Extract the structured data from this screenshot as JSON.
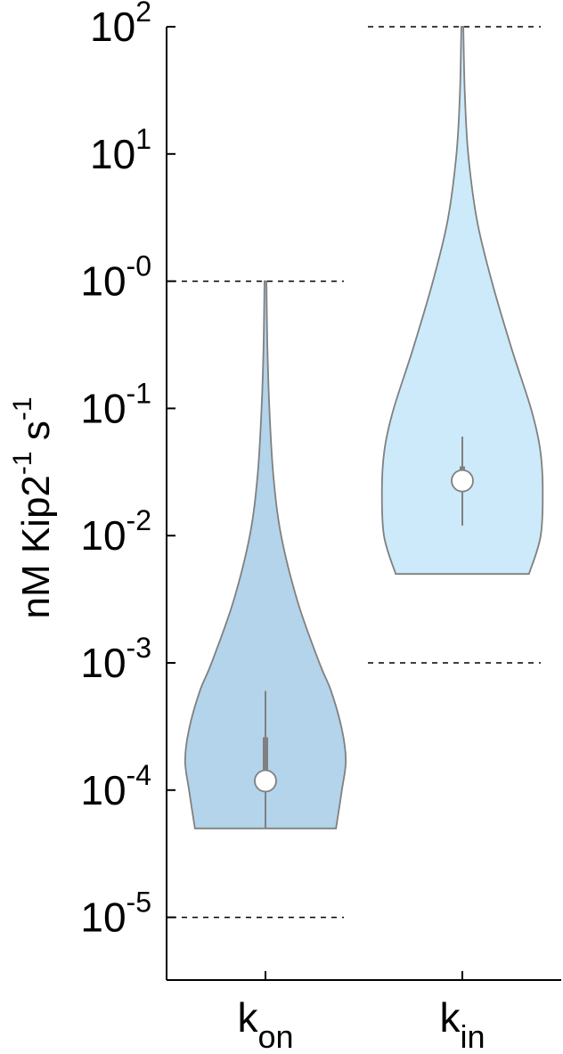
{
  "chart_data": {
    "type": "violin",
    "ylabel": "nM Kip2",
    "ylabel_parts": [
      "nM Kip2",
      "-1",
      " s",
      "-1"
    ],
    "yscale": "log",
    "ylim": [
      1e-06,
      100
    ],
    "yticks": [
      {
        "value": 100,
        "label_base": "10",
        "label_exp": "2"
      },
      {
        "value": 10,
        "label_base": "10",
        "label_exp": "1"
      },
      {
        "value": 1,
        "label_base": "10",
        "label_exp": "-0"
      },
      {
        "value": 0.1,
        "label_base": "10",
        "label_exp": "-1"
      },
      {
        "value": 0.01,
        "label_base": "10",
        "label_exp": "-2"
      },
      {
        "value": 0.001,
        "label_base": "10",
        "label_exp": "-3"
      },
      {
        "value": 0.0001,
        "label_base": "10",
        "label_exp": "-4"
      },
      {
        "value": 1e-05,
        "label_base": "10",
        "label_exp": "-5"
      }
    ],
    "categories": [
      {
        "label_base": "k",
        "label_sub": "on"
      },
      {
        "label_base": "k",
        "label_sub": "in"
      }
    ],
    "series": [
      {
        "color": "#b3d4ea",
        "bounds": [
          1e-05,
          1
        ],
        "median": 0.000118,
        "q1": 0.0001,
        "q3": 0.00026,
        "whisker_low": 5e-05,
        "whisker_high": 0.0006,
        "profile": [
          {
            "y": 5e-05,
            "half_width": 0.72
          },
          {
            "y": 0.0001,
            "half_width": 0.78
          },
          {
            "y": 0.00017,
            "half_width": 0.82
          },
          {
            "y": 0.0003,
            "half_width": 0.78
          },
          {
            "y": 0.0006,
            "half_width": 0.67
          },
          {
            "y": 0.001,
            "half_width": 0.55
          },
          {
            "y": 0.003,
            "half_width": 0.33
          },
          {
            "y": 0.01,
            "half_width": 0.16
          },
          {
            "y": 0.03,
            "half_width": 0.08
          },
          {
            "y": 0.1,
            "half_width": 0.04
          },
          {
            "y": 0.3,
            "half_width": 0.02
          },
          {
            "y": 1,
            "half_width": 0.01
          }
        ]
      },
      {
        "color": "#cceaf9",
        "bounds": [
          0.001,
          100
        ],
        "median": 0.027,
        "q1": 0.022,
        "q3": 0.035,
        "whisker_low": 0.012,
        "whisker_high": 0.06,
        "profile": [
          {
            "y": 0.005,
            "half_width": 0.68
          },
          {
            "y": 0.01,
            "half_width": 0.8
          },
          {
            "y": 0.025,
            "half_width": 0.82
          },
          {
            "y": 0.05,
            "half_width": 0.79
          },
          {
            "y": 0.1,
            "half_width": 0.7
          },
          {
            "y": 0.3,
            "half_width": 0.5
          },
          {
            "y": 1,
            "half_width": 0.3
          },
          {
            "y": 3,
            "half_width": 0.15
          },
          {
            "y": 10,
            "half_width": 0.06
          },
          {
            "y": 30,
            "half_width": 0.025
          },
          {
            "y": 100,
            "half_width": 0.01
          }
        ]
      }
    ],
    "grid": false,
    "legend": "none"
  }
}
